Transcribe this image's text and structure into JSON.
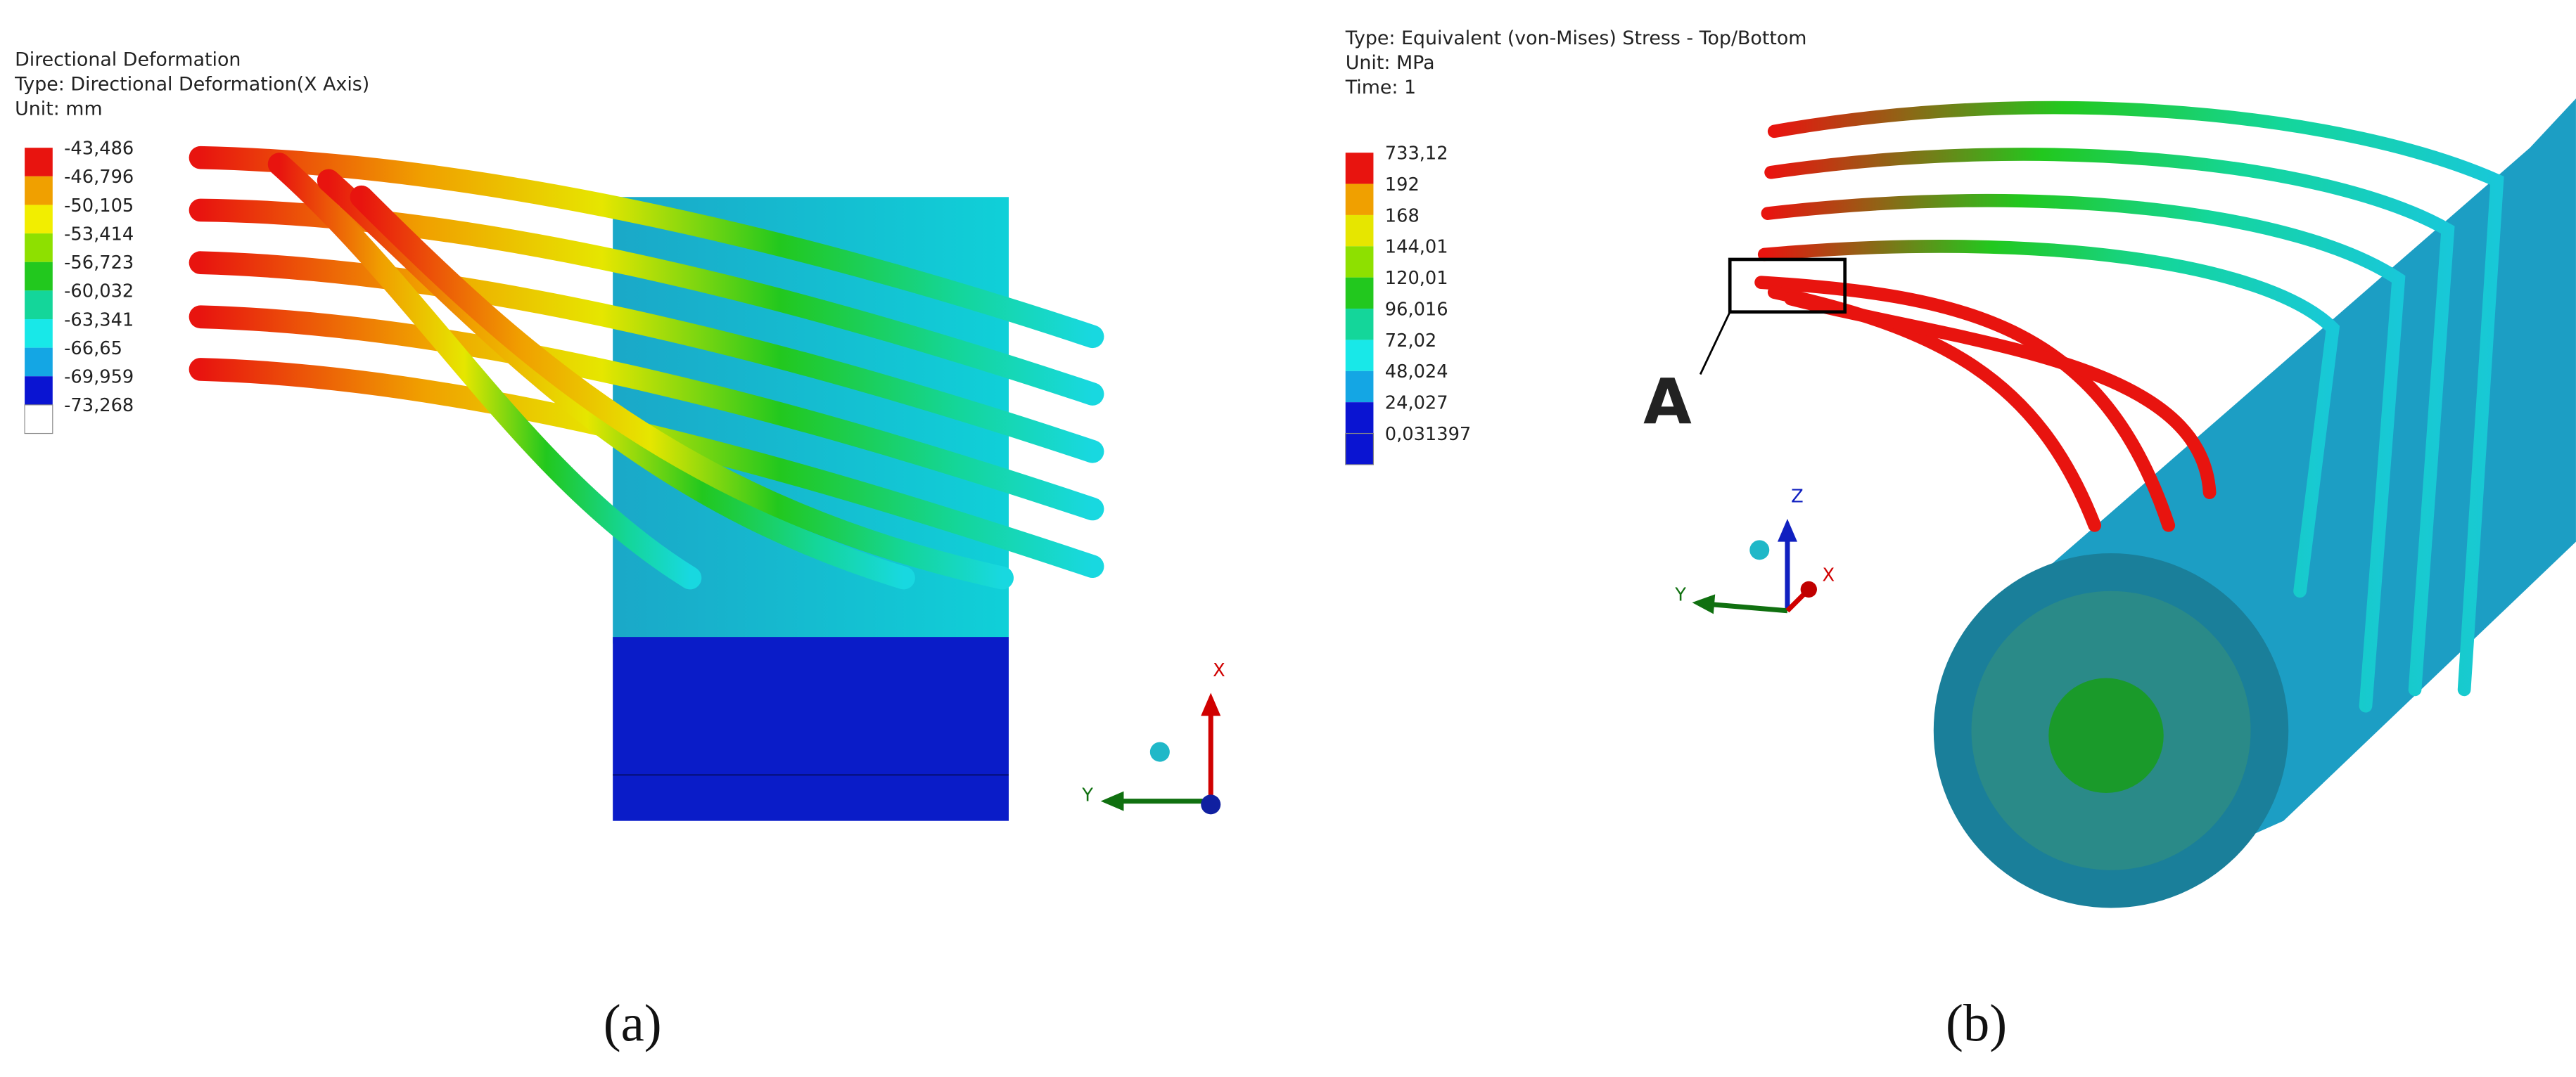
{
  "panels": [
    {
      "caption": "(a)",
      "header": [
        "Directional Deformation",
        "Type: Directional Deformation(X Axis)",
        "Unit: mm"
      ],
      "legend": [
        {
          "label": "-43,486",
          "color": "#e8140f"
        },
        {
          "label": "-46,796",
          "color": "#f0a000"
        },
        {
          "label": "-50,105",
          "color": "#f2ee00"
        },
        {
          "label": "-53,414",
          "color": "#8ee000"
        },
        {
          "label": "-56,723",
          "color": "#22c81e"
        },
        {
          "label": "-60,032",
          "color": "#14d69a"
        },
        {
          "label": "-63,341",
          "color": "#18e8e8"
        },
        {
          "label": "-66,65",
          "color": "#14a6e4"
        },
        {
          "label": "-69,959",
          "color": "#0a14d2"
        },
        {
          "label": "-73,268",
          "color": "#ffffff"
        }
      ],
      "triad": {
        "x": "X",
        "y": "Y"
      }
    },
    {
      "caption": "(b)",
      "header": [
        "Type: Equivalent (von-Mises) Stress - Top/Bottom",
        "Unit: MPa",
        "Time: 1"
      ],
      "legend": [
        {
          "label": "733,12",
          "color": "#e8140f"
        },
        {
          "label": "192",
          "color": "#f0a000"
        },
        {
          "label": "168",
          "color": "#e6e600"
        },
        {
          "label": "144,01",
          "color": "#8ee000"
        },
        {
          "label": "120,01",
          "color": "#22c81e"
        },
        {
          "label": "96,016",
          "color": "#14d69a"
        },
        {
          "label": "72,02",
          "color": "#18e8e8"
        },
        {
          "label": "48,024",
          "color": "#14a6e4"
        },
        {
          "label": "24,027",
          "color": "#0a14d2"
        },
        {
          "label": "0,031397",
          "color": "#0a14d2"
        }
      ],
      "triad": {
        "x": "X",
        "y": "Y",
        "z": "Z"
      },
      "callout": "A"
    }
  ]
}
